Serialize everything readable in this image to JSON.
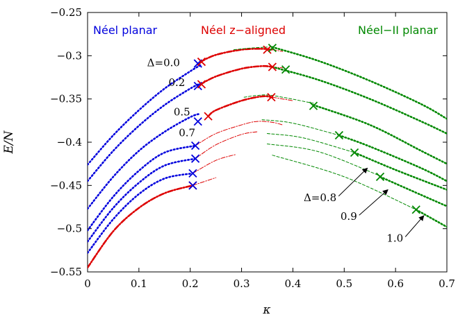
{
  "chart_data": {
    "type": "line",
    "xlabel": "κ",
    "ylabel": "E/N",
    "xlim": [
      0,
      0.7
    ],
    "ylim": [
      -0.55,
      -0.25
    ],
    "xticks": [
      0,
      0.1,
      0.2,
      0.3,
      0.4,
      0.5,
      0.6,
      0.7
    ],
    "xtick_labels": [
      "0",
      "0.1",
      "0.2",
      "0.3",
      "0.4",
      "0.5",
      "0.6",
      "0.7"
    ],
    "yticks": [
      -0.55,
      -0.5,
      -0.45,
      -0.4,
      -0.35,
      -0.3,
      -0.25
    ],
    "ytick_labels": [
      "−0.55",
      "−0.5",
      "−0.45",
      "−0.4",
      "−0.35",
      "−0.3",
      "−0.25"
    ],
    "grid": false,
    "legend": [
      {
        "label": "Néel planar",
        "color": "#0000dd"
      },
      {
        "label": "Néel z−aligned",
        "color": "#dd0000"
      },
      {
        "label": "Néel−II planar",
        "color": "#008800"
      }
    ],
    "colors": {
      "neel_planar": "#0000dd",
      "neel_z": "#dd0000",
      "neel_ii": "#008800"
    },
    "series": [
      {
        "delta": 0.0,
        "neel_planar": {
          "x": [
            0,
            0.05,
            0.1,
            0.15,
            0.2,
            0.22
          ],
          "y": [
            -0.426,
            -0.392,
            -0.363,
            -0.338,
            -0.318,
            -0.311
          ]
        },
        "neel_z_thick": {
          "x": [
            0.22,
            0.25,
            0.3,
            0.34,
            0.36
          ],
          "y": [
            -0.307,
            -0.299,
            -0.293,
            -0.292,
            -0.293
          ]
        },
        "neel_z_thin": {
          "x": [
            0.36,
            0.38
          ],
          "y": [
            -0.293,
            -0.295
          ]
        },
        "neel_ii_thin": {
          "x": [
            0.285,
            0.32,
            0.35
          ],
          "y": [
            -0.293,
            -0.291,
            -0.29
          ]
        },
        "neel_ii_thick": {
          "x": [
            0.36,
            0.45,
            0.55,
            0.65,
            0.7
          ],
          "y": [
            -0.29,
            -0.306,
            -0.329,
            -0.356,
            -0.373
          ]
        },
        "markers": [
          {
            "x": 0.215,
            "y": -0.309,
            "color": "#0000dd"
          },
          {
            "x": 0.222,
            "y": -0.307,
            "color": "#dd0000"
          },
          {
            "x": 0.35,
            "y": -0.293,
            "color": "#dd0000"
          },
          {
            "x": 0.36,
            "y": -0.291,
            "color": "#008800"
          }
        ]
      },
      {
        "delta": 0.2,
        "neel_planar": {
          "x": [
            0,
            0.05,
            0.1,
            0.15,
            0.2,
            0.22
          ],
          "y": [
            -0.445,
            -0.41,
            -0.381,
            -0.357,
            -0.338,
            -0.332
          ]
        },
        "neel_z_thick": {
          "x": [
            0.22,
            0.25,
            0.3,
            0.34,
            0.36
          ],
          "y": [
            -0.333,
            -0.324,
            -0.315,
            -0.312,
            -0.313
          ]
        },
        "neel_z_thin": {
          "x": [
            0.36,
            0.38
          ],
          "y": [
            -0.313,
            -0.314
          ]
        },
        "neel_ii_thick": {
          "x": [
            0.36,
            0.45,
            0.55,
            0.65,
            0.7
          ],
          "y": [
            -0.313,
            -0.328,
            -0.35,
            -0.376,
            -0.39
          ]
        },
        "markers": [
          {
            "x": 0.215,
            "y": -0.335,
            "color": "#0000dd"
          },
          {
            "x": 0.222,
            "y": -0.333,
            "color": "#dd0000"
          },
          {
            "x": 0.36,
            "y": -0.313,
            "color": "#dd0000"
          },
          {
            "x": 0.386,
            "y": -0.316,
            "color": "#008800"
          }
        ]
      },
      {
        "delta": 0.5,
        "neel_planar": {
          "x": [
            0,
            0.05,
            0.1,
            0.15,
            0.2,
            0.22
          ],
          "y": [
            -0.477,
            -0.44,
            -0.41,
            -0.388,
            -0.371,
            -0.367
          ]
        },
        "neel_z_thick": {
          "x": [
            0.235,
            0.25,
            0.3,
            0.34,
            0.36
          ],
          "y": [
            -0.37,
            -0.363,
            -0.352,
            -0.347,
            -0.348
          ]
        },
        "neel_z_thin": {
          "x": [
            0.36,
            0.4
          ],
          "y": [
            -0.348,
            -0.352
          ]
        },
        "neel_ii_thin": {
          "x": [
            0.305,
            0.33,
            0.36,
            0.44
          ],
          "y": [
            -0.348,
            -0.346,
            -0.346,
            -0.355
          ]
        },
        "neel_ii_thick": {
          "x": [
            0.44,
            0.55,
            0.65,
            0.7
          ],
          "y": [
            -0.357,
            -0.38,
            -0.41,
            -0.425
          ]
        },
        "markers": [
          {
            "x": 0.215,
            "y": -0.376,
            "color": "#0000dd"
          },
          {
            "x": 0.235,
            "y": -0.37,
            "color": "#dd0000"
          },
          {
            "x": 0.358,
            "y": -0.348,
            "color": "#dd0000"
          },
          {
            "x": 0.44,
            "y": -0.358,
            "color": "#008800"
          }
        ]
      },
      {
        "delta": 0.7,
        "neel_planar": {
          "x": [
            0,
            0.05,
            0.1,
            0.15,
            0.21
          ],
          "y": [
            -0.502,
            -0.463,
            -0.433,
            -0.412,
            -0.404
          ]
        },
        "neel_z_thin": {
          "x": [
            0.21,
            0.25,
            0.3,
            0.33,
            0.36,
            0.38
          ],
          "y": [
            -0.404,
            -0.39,
            -0.38,
            -0.376,
            -0.377,
            -0.38
          ]
        },
        "neel_ii_thin": {
          "x": [
            0.34,
            0.4,
            0.49
          ],
          "y": [
            -0.374,
            -0.378,
            -0.392
          ]
        },
        "neel_ii_thick": {
          "x": [
            0.49,
            0.55,
            0.65,
            0.7
          ],
          "y": [
            -0.392,
            -0.405,
            -0.43,
            -0.445
          ]
        },
        "markers": [
          {
            "x": 0.21,
            "y": -0.404,
            "color": "#0000dd"
          },
          {
            "x": 0.49,
            "y": -0.392,
            "color": "#008800"
          }
        ]
      },
      {
        "delta": 0.8,
        "neel_planar": {
          "x": [
            0,
            0.05,
            0.1,
            0.15,
            0.21
          ],
          "y": [
            -0.515,
            -0.476,
            -0.447,
            -0.427,
            -0.419
          ]
        },
        "neel_z_thin": {
          "x": [
            0.21,
            0.25,
            0.3,
            0.33
          ],
          "y": [
            -0.419,
            -0.403,
            -0.391,
            -0.388
          ]
        },
        "neel_ii_thin": {
          "x": [
            0.35,
            0.42,
            0.52
          ],
          "y": [
            -0.39,
            -0.395,
            -0.412
          ]
        },
        "neel_ii_thick": {
          "x": [
            0.52,
            0.6,
            0.7
          ],
          "y": [
            -0.412,
            -0.432,
            -0.455
          ]
        },
        "markers": [
          {
            "x": 0.21,
            "y": -0.419,
            "color": "#0000dd"
          },
          {
            "x": 0.52,
            "y": -0.412,
            "color": "#008800"
          }
        ]
      },
      {
        "delta": 0.9,
        "neel_planar": {
          "x": [
            0,
            0.05,
            0.1,
            0.15,
            0.205
          ],
          "y": [
            -0.528,
            -0.489,
            -0.46,
            -0.442,
            -0.436
          ]
        },
        "neel_z_thin": {
          "x": [
            0.205,
            0.25,
            0.29
          ],
          "y": [
            -0.436,
            -0.421,
            -0.414
          ]
        },
        "neel_ii_thin": {
          "x": [
            0.35,
            0.45,
            0.57
          ],
          "y": [
            -0.402,
            -0.411,
            -0.439
          ]
        },
        "neel_ii_thick": {
          "x": [
            0.57,
            0.65,
            0.7
          ],
          "y": [
            -0.44,
            -0.461,
            -0.474
          ]
        },
        "markers": [
          {
            "x": 0.205,
            "y": -0.436,
            "color": "#0000dd"
          },
          {
            "x": 0.57,
            "y": -0.44,
            "color": "#008800"
          }
        ]
      },
      {
        "delta": 1.0,
        "neel_z_thick": {
          "x": [
            0,
            0.05,
            0.1,
            0.15,
            0.205
          ],
          "y": [
            -0.545,
            -0.503,
            -0.476,
            -0.459,
            -0.45
          ]
        },
        "neel_z_thin": {
          "x": [
            0.205,
            0.25
          ],
          "y": [
            -0.45,
            -0.441
          ]
        },
        "neel_ii_thin": {
          "x": [
            0.36,
            0.5,
            0.64
          ],
          "y": [
            -0.415,
            -0.44,
            -0.478
          ]
        },
        "neel_ii_thick": {
          "x": [
            0.64,
            0.7
          ],
          "y": [
            -0.478,
            -0.498
          ]
        },
        "markers": [
          {
            "x": 0.205,
            "y": -0.45,
            "color": "#dd0000"
          },
          {
            "x": 0.205,
            "y": -0.45,
            "color": "#0000dd"
          },
          {
            "x": 0.64,
            "y": -0.478,
            "color": "#008800"
          }
        ]
      }
    ],
    "annotations": [
      {
        "text": "Δ=0.0",
        "x": 0.18,
        "y": -0.308,
        "anchor": "end"
      },
      {
        "text": "0.2",
        "x": 0.19,
        "y": -0.331,
        "anchor": "end"
      },
      {
        "text": "0.5",
        "x": 0.2,
        "y": -0.365,
        "anchor": "end"
      },
      {
        "text": "0.7",
        "x": 0.21,
        "y": -0.389,
        "anchor": "end"
      },
      {
        "text": "Δ=0.8",
        "x": 0.485,
        "y": -0.464,
        "anchor": "end",
        "arrow_to": [
          0.545,
          -0.43
        ]
      },
      {
        "text": "0.9",
        "x": 0.525,
        "y": -0.486,
        "anchor": "end",
        "arrow_to": [
          0.585,
          -0.455
        ]
      },
      {
        "text": "1.0",
        "x": 0.615,
        "y": -0.511,
        "anchor": "end",
        "arrow_to": [
          0.655,
          -0.485
        ]
      }
    ]
  }
}
